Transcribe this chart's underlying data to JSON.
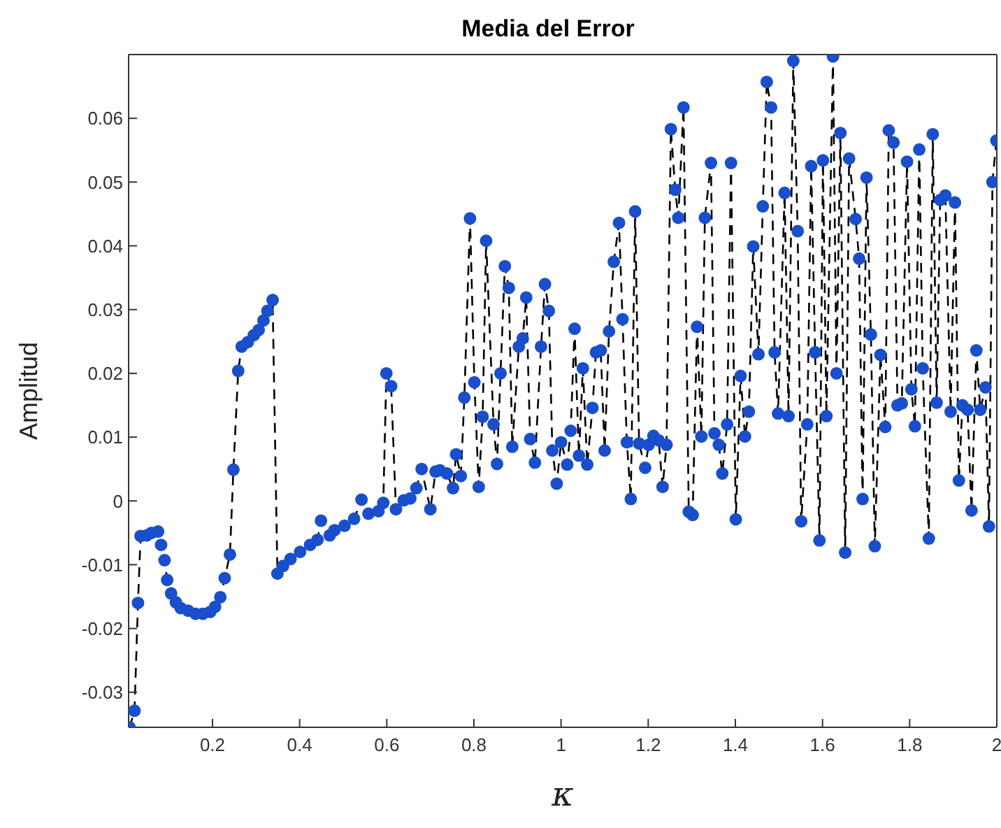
{
  "chart_data": {
    "type": "line",
    "title": "Media del Error",
    "xlabel": "κ",
    "ylabel": "Amplitud",
    "xlim": [
      0.0075,
      2
    ],
    "ylim": [
      -0.0355,
      0.07
    ],
    "xticks": [
      0.2,
      0.4,
      0.6,
      0.8,
      1,
      1.2,
      1.4,
      1.6,
      1.8,
      2
    ],
    "yticks": [
      -0.03,
      -0.02,
      -0.01,
      0,
      0.01,
      0.02,
      0.03,
      0.04,
      0.05,
      0.06
    ],
    "grid": false,
    "marker": "circle",
    "line_style": "dashed",
    "series": [
      {
        "color": "#1a4fcc",
        "x": [
          0.0097,
          0.021,
          0.029,
          0.035,
          0.049,
          0.06,
          0.075,
          0.082,
          0.09,
          0.096,
          0.105,
          0.116,
          0.127,
          0.144,
          0.161,
          0.178,
          0.195,
          0.206,
          0.218,
          0.228,
          0.24,
          0.248,
          0.259,
          0.267,
          0.281,
          0.295,
          0.306,
          0.317,
          0.326,
          0.338,
          0.349,
          0.362,
          0.379,
          0.401,
          0.424,
          0.441,
          0.449,
          0.469,
          0.48,
          0.503,
          0.525,
          0.542,
          0.558,
          0.581,
          0.592,
          0.599,
          0.61,
          0.621,
          0.639,
          0.654,
          0.668,
          0.68,
          0.7,
          0.712,
          0.722,
          0.738,
          0.752,
          0.759,
          0.77,
          0.778,
          0.791,
          0.801,
          0.811,
          0.82,
          0.828,
          0.845,
          0.853,
          0.861,
          0.871,
          0.88,
          0.888,
          0.903,
          0.912,
          0.92,
          0.929,
          0.94,
          0.954,
          0.963,
          0.972,
          0.98,
          0.99,
          1.0,
          1.014,
          1.022,
          1.031,
          1.041,
          1.05,
          1.06,
          1.072,
          1.08,
          1.091,
          1.1,
          1.11,
          1.121,
          1.133,
          1.141,
          1.151,
          1.16,
          1.17,
          1.179,
          1.193,
          1.201,
          1.212,
          1.224,
          1.233,
          1.242,
          1.252,
          1.262,
          1.269,
          1.281,
          1.293,
          1.302,
          1.312,
          1.322,
          1.33,
          1.344,
          1.352,
          1.362,
          1.37,
          1.381,
          1.39,
          1.401,
          1.412,
          1.422,
          1.431,
          1.441,
          1.453,
          1.463,
          1.472,
          1.482,
          1.49,
          1.498,
          1.513,
          1.522,
          1.533,
          1.543,
          1.551,
          1.565,
          1.574,
          1.583,
          1.593,
          1.601,
          1.609,
          1.624,
          1.632,
          1.641,
          1.652,
          1.661,
          1.676,
          1.684,
          1.692,
          1.701,
          1.711,
          1.72,
          1.733,
          1.744,
          1.752,
          1.763,
          1.772,
          1.782,
          1.794,
          1.804,
          1.812,
          1.822,
          1.83,
          1.844,
          1.853,
          1.862,
          1.87,
          1.882,
          1.894,
          1.904,
          1.913,
          1.921,
          1.933,
          1.942,
          1.953,
          1.962,
          1.974,
          1.982,
          1.99,
          1.999
        ],
        "values": [
          -0.0355,
          -0.0329,
          -0.016,
          -0.0055,
          -0.0054,
          -0.005,
          -0.0048,
          -0.0069,
          -0.0093,
          -0.0124,
          -0.0145,
          -0.0159,
          -0.0168,
          -0.0172,
          -0.0177,
          -0.0177,
          -0.0174,
          -0.0166,
          -0.0151,
          -0.0121,
          -0.0084,
          0.0049,
          0.0204,
          0.0242,
          0.0249,
          0.026,
          0.0268,
          0.0283,
          0.0298,
          0.0315,
          -0.0114,
          -0.0102,
          -0.0091,
          -0.008,
          -0.0069,
          -0.0061,
          -0.0031,
          -0.0054,
          -0.0046,
          -0.0039,
          -0.0028,
          0.0002,
          -0.002,
          -0.0016,
          -0.0003,
          0.02,
          0.018,
          -0.0013,
          0.0001,
          0.0004,
          0.002,
          0.005,
          -0.0013,
          0.0046,
          0.0048,
          0.0043,
          0.002,
          0.0073,
          0.0039,
          0.0162,
          0.0443,
          0.0186,
          0.0022,
          0.0132,
          0.0408,
          0.012,
          0.0058,
          0.02,
          0.0368,
          0.0334,
          0.0085,
          0.0242,
          0.0255,
          0.0319,
          0.0097,
          0.006,
          0.0242,
          0.034,
          0.0298,
          0.0079,
          0.0027,
          0.0092,
          0.0057,
          0.011,
          0.027,
          0.0071,
          0.0208,
          0.0057,
          0.0146,
          0.0233,
          0.0236,
          0.0079,
          0.0266,
          0.0375,
          0.0436,
          0.0285,
          0.0092,
          0.0003,
          0.0454,
          0.009,
          0.0052,
          0.0088,
          0.0102,
          0.0095,
          0.0022,
          0.0088,
          0.0583,
          0.0488,
          0.0444,
          0.0617,
          -0.0017,
          -0.0022,
          0.0273,
          0.0101,
          0.0444,
          0.053,
          0.0106,
          0.0088,
          0.0043,
          0.012,
          0.053,
          -0.0029,
          0.0196,
          0.0101,
          0.014,
          0.0399,
          0.023,
          0.0462,
          0.0657,
          0.0617,
          0.0233,
          0.0137,
          0.0483,
          0.0133,
          0.069,
          0.0423,
          -0.0032,
          0.012,
          0.0525,
          0.0233,
          -0.0062,
          0.0534,
          0.0133,
          0.0697,
          0.02,
          0.0577,
          -0.0081,
          0.0537,
          0.0442,
          0.038,
          0.0003,
          0.0507,
          0.0261,
          -0.0071,
          0.0229,
          0.0116,
          0.0581,
          0.0562,
          0.015,
          0.0153,
          0.0532,
          0.0175,
          0.0117,
          0.0551,
          0.0208,
          -0.0059,
          0.0575,
          0.0154,
          0.0472,
          0.0479,
          0.014,
          0.0468,
          0.0032,
          0.015,
          0.0143,
          -0.0015,
          0.0236,
          0.0143,
          0.0178,
          -0.004,
          0.05,
          0.0565
        ]
      }
    ]
  }
}
